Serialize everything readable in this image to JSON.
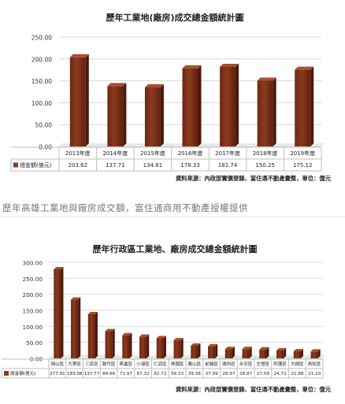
{
  "caption": "歷年高雄工業地與廠房成交額，富住通商用不動產授權提供",
  "chart_data": [
    {
      "type": "bar",
      "title": "歷年工業地(廠房)成交總金額統計圖",
      "categories": [
        "2013年度",
        "2014年度",
        "2015年度",
        "2016年度",
        "2017年度",
        "2018年度",
        "2019年度"
      ],
      "series": [
        {
          "name": "總金額(億元)",
          "values": [
            203.62,
            137.71,
            134.81,
            178.33,
            181.74,
            150.25,
            175.12
          ]
        }
      ],
      "value_labels": [
        "203.62",
        "137.71",
        "134.81",
        "178.33",
        "181.74",
        "150.25",
        "175.12"
      ],
      "y_ticks": [
        "250.00",
        "200.00",
        "150.00",
        "100.00",
        "50.00",
        "0.00"
      ],
      "ylim": [
        0,
        250
      ],
      "grid": true,
      "legend": "table-below",
      "source": "資料來源：內政部實價登錄、富住通不動產彙整，單位：億元",
      "bar_color": "#8b3a1e"
    },
    {
      "type": "bar",
      "title": "歷年行政區工業地、廠房成交總金額統計圖",
      "categories": [
        "岡山區",
        "大寮區",
        "三民區",
        "路竹區",
        "燕巢區",
        "小港區",
        "仁武區",
        "林園區",
        "鳳山區",
        "前鎮區",
        "湖內區",
        "永安區",
        "左營區",
        "阿蓮區",
        "大樹區",
        "鳥松區"
      ],
      "series": [
        {
          "name": "總金額(億元)",
          "values": [
            277.91,
            183.08,
            137.77,
            84.66,
            71.97,
            67.32,
            62.72,
            56.33,
            39.38,
            37.09,
            28.97,
            28.87,
            27.59,
            24.71,
            21.88,
            21.2
          ]
        }
      ],
      "value_labels": [
        "277.91",
        "183.08",
        "137.77",
        "84.66",
        "71.97",
        "67.32",
        "62.72",
        "56.33",
        "39.38",
        "37.09",
        "28.97",
        "28.87",
        "27.59",
        "24.71",
        "21.88",
        "21.20"
      ],
      "y_ticks": [
        "300.00",
        "250.00",
        "200.00",
        "150.00",
        "100.00",
        "50.00",
        "0.00"
      ],
      "ylim": [
        0,
        300
      ],
      "grid": true,
      "legend": "table-below",
      "source": "資料來源：內政部實價登錄、富住通不動產彙整，單位：億元",
      "bar_color": "#8b3a1e"
    }
  ]
}
